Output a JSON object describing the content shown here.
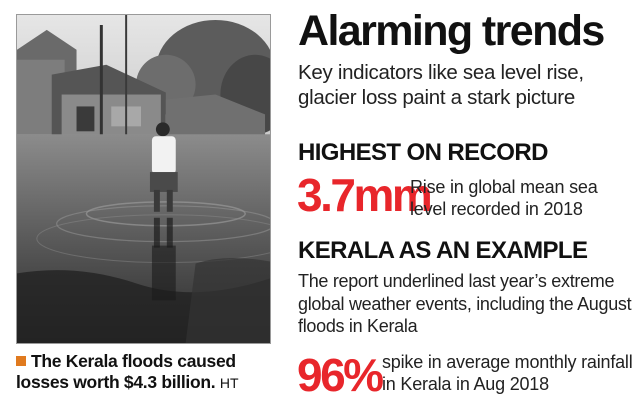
{
  "photo": {
    "description_icon": "flood-photo",
    "caption": "The Kerala floods caused losses worth $4.3 billion.",
    "credit": "HT"
  },
  "title": "Alarming trends",
  "subtitle": "Key indicators like sea level rise, glacier loss paint a stark picture",
  "section1": {
    "heading": "HIGHEST ON RECORD",
    "value": "3.7mm",
    "text": "Rise in global mean sea level recorded in 2018"
  },
  "section2": {
    "heading": "KERALA AS AN EXAMPLE",
    "paragraph": "The report underlined last year’s extreme global weather events, including the August floods in Kerala",
    "value": "96%",
    "text": "spike in average monthly rainfall in Kerala in Aug 2018"
  },
  "colors": {
    "accent": "#e8262b",
    "bullet": "#e07a1f"
  }
}
